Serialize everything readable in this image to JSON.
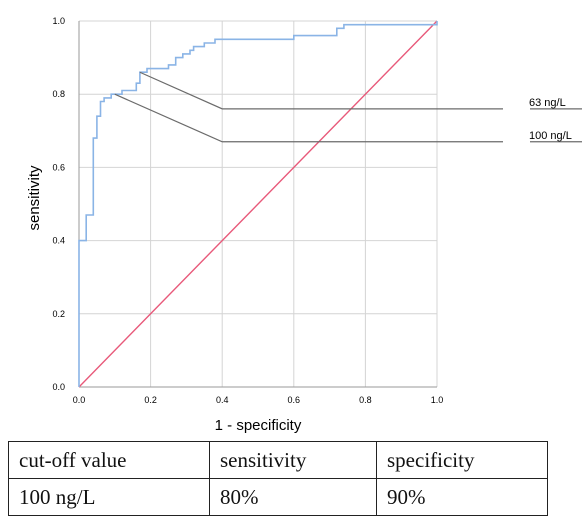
{
  "chart_data": {
    "type": "line",
    "xlabel": "1 - specificity",
    "ylabel": "sensitivity",
    "xlim": [
      0,
      1
    ],
    "ylim": [
      0,
      1
    ],
    "xticks": [
      "0.0",
      "0.2",
      "0.4",
      "0.6",
      "0.8",
      "1.0"
    ],
    "yticks": [
      "0.0",
      "0.2",
      "0.4",
      "0.6",
      "0.8",
      "1.0"
    ],
    "grid": true,
    "colors": {
      "roc": "#8ab4e6",
      "reference": "#e8597a",
      "annotation": "#6b6b6b",
      "grid": "#d4d4d4"
    },
    "series": [
      {
        "x": [
          0,
          0,
          0.02,
          0.02,
          0.04,
          0.04,
          0.05,
          0.05,
          0.06,
          0.06,
          0.07,
          0.07,
          0.09,
          0.09,
          0.12,
          0.12,
          0.16,
          0.16,
          0.17,
          0.17,
          0.19,
          0.19,
          0.25,
          0.25,
          0.27,
          0.27,
          0.29,
          0.29,
          0.31,
          0.31,
          0.32,
          0.32,
          0.35,
          0.35,
          0.38,
          0.38,
          0.6,
          0.6,
          0.72,
          0.72,
          0.74,
          0.74,
          1,
          1
        ],
        "y": [
          0,
          0.4,
          0.4,
          0.47,
          0.47,
          0.68,
          0.68,
          0.74,
          0.74,
          0.78,
          0.78,
          0.79,
          0.79,
          0.8,
          0.8,
          0.81,
          0.81,
          0.83,
          0.83,
          0.86,
          0.86,
          0.87,
          0.87,
          0.88,
          0.88,
          0.9,
          0.9,
          0.91,
          0.91,
          0.92,
          0.92,
          0.93,
          0.93,
          0.94,
          0.94,
          0.95,
          0.95,
          0.96,
          0.96,
          0.98,
          0.98,
          0.99,
          0.99,
          1
        ]
      },
      {
        "x": [
          0,
          1
        ],
        "y": [
          0,
          1
        ]
      }
    ],
    "annotations": [
      {
        "text": "63 ng/L",
        "point": [
          0.17,
          0.86
        ],
        "level": 0.76
      },
      {
        "text": "100 ng/L",
        "point": [
          0.1,
          0.8
        ],
        "level": 0.67
      }
    ]
  },
  "table": {
    "headers": [
      "cut-off value",
      "sensitivity",
      "specificity"
    ],
    "rows": [
      [
        "100 ng/L",
        "80%",
        "90%"
      ]
    ]
  }
}
